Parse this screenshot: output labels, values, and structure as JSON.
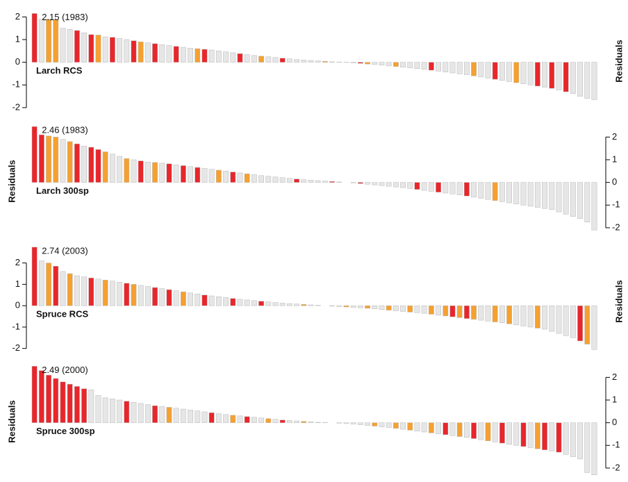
{
  "chart_data": [
    {
      "type": "bar",
      "label": "Larch RCS",
      "annotation": "2.15 (1983)",
      "ylabel": "Residuals",
      "y_axis_side": "left",
      "ylim": [
        -2.4,
        2.5
      ],
      "yticks": [
        -2,
        -1,
        0,
        1,
        2
      ],
      "values": [
        2.15,
        1.9,
        1.9,
        1.88,
        1.5,
        1.45,
        1.4,
        1.3,
        1.22,
        1.2,
        1.12,
        1.1,
        1.05,
        1.0,
        0.95,
        0.9,
        0.86,
        0.82,
        0.78,
        0.74,
        0.7,
        0.66,
        0.62,
        0.6,
        0.57,
        0.54,
        0.5,
        0.46,
        0.42,
        0.38,
        0.34,
        0.3,
        0.27,
        0.24,
        0.21,
        0.18,
        0.15,
        0.12,
        0.1,
        0.08,
        0.06,
        0.04,
        0.02,
        0.01,
        -0.01,
        -0.03,
        -0.05,
        -0.08,
        -0.1,
        -0.13,
        -0.16,
        -0.19,
        -0.22,
        -0.25,
        -0.28,
        -0.31,
        -0.35,
        -0.39,
        -0.43,
        -0.47,
        -0.51,
        -0.55,
        -0.6,
        -0.65,
        -0.7,
        -0.75,
        -0.8,
        -0.85,
        -0.9,
        -0.95,
        -1.0,
        -1.05,
        -1.1,
        -1.15,
        -1.22,
        -1.3,
        -1.38,
        -1.5,
        -1.6,
        -1.65
      ],
      "bar_colors": [
        "#e8262b",
        "#e6e6e6",
        "#f5a030",
        "#f5a030",
        "#e6e6e6",
        "#e6e6e6",
        "#e8262b",
        "#e6e6e6",
        "#e8262b",
        "#f5a030",
        "#e6e6e6",
        "#e8262b",
        "#e6e6e6",
        "#e6e6e6",
        "#e8262b",
        "#f5a030",
        "#e6e6e6",
        "#e8262b",
        "#e6e6e6",
        "#e6e6e6",
        "#e8262b",
        "#e6e6e6",
        "#e6e6e6",
        "#f5a030",
        "#e8262b",
        "#e6e6e6",
        "#e6e6e6",
        "#e6e6e6",
        "#e6e6e6",
        "#e8262b",
        "#e6e6e6",
        "#e6e6e6",
        "#f5a030",
        "#e6e6e6",
        "#e6e6e6",
        "#e8262b",
        "#e6e6e6",
        "#e6e6e6",
        "#e6e6e6",
        "#e6e6e6",
        "#e6e6e6",
        "#f5a030",
        "#e6e6e6",
        "#e6e6e6",
        "#e6e6e6",
        "#e6e6e6",
        "#e8262b",
        "#f5a030",
        "#e6e6e6",
        "#e6e6e6",
        "#e6e6e6",
        "#f5a030",
        "#e6e6e6",
        "#e6e6e6",
        "#e6e6e6",
        "#e6e6e6",
        "#e8262b",
        "#e6e6e6",
        "#e6e6e6",
        "#e6e6e6",
        "#e6e6e6",
        "#e6e6e6",
        "#f5a030",
        "#e6e6e6",
        "#e6e6e6",
        "#e8262b",
        "#e6e6e6",
        "#e6e6e6",
        "#f5a030",
        "#e6e6e6",
        "#e6e6e6",
        "#e8262b",
        "#e6e6e6",
        "#e8262b",
        "#e6e6e6",
        "#e8262b",
        "#e6e6e6",
        "#e6e6e6",
        "#e6e6e6",
        "#e6e6e6"
      ]
    },
    {
      "type": "bar",
      "label": "Larch 300sp",
      "annotation": "2.46 (1983)",
      "ylabel": "Residuals",
      "y_axis_side": "right",
      "ylim": [
        -2.4,
        2.5
      ],
      "yticks": [
        -2,
        -1,
        0,
        1,
        2
      ],
      "values": [
        2.46,
        2.1,
        2.05,
        2.0,
        1.9,
        1.8,
        1.7,
        1.6,
        1.55,
        1.45,
        1.35,
        1.25,
        1.15,
        1.05,
        1.0,
        0.95,
        0.9,
        0.88,
        0.85,
        0.82,
        0.78,
        0.74,
        0.7,
        0.66,
        0.62,
        0.58,
        0.54,
        0.5,
        0.46,
        0.42,
        0.38,
        0.34,
        0.3,
        0.27,
        0.24,
        0.21,
        0.18,
        0.15,
        0.12,
        0.1,
        0.08,
        0.06,
        0.04,
        0.02,
        0.0,
        -0.02,
        -0.05,
        -0.08,
        -0.11,
        -0.14,
        -0.17,
        -0.2,
        -0.23,
        -0.27,
        -0.31,
        -0.35,
        -0.39,
        -0.43,
        -0.47,
        -0.51,
        -0.55,
        -0.6,
        -0.65,
        -0.7,
        -0.75,
        -0.8,
        -0.85,
        -0.9,
        -0.95,
        -1.0,
        -1.05,
        -1.1,
        -1.15,
        -1.2,
        -1.3,
        -1.4,
        -1.5,
        -1.6,
        -1.75,
        -2.1
      ],
      "bar_colors": [
        "#e8262b",
        "#e8262b",
        "#f5a030",
        "#f5a030",
        "#e6e6e6",
        "#f5a030",
        "#e8262b",
        "#e6e6e6",
        "#e8262b",
        "#e8262b",
        "#f5a030",
        "#e6e6e6",
        "#e6e6e6",
        "#f5a030",
        "#e6e6e6",
        "#e8262b",
        "#e6e6e6",
        "#f5a030",
        "#e6e6e6",
        "#e8262b",
        "#e6e6e6",
        "#e8262b",
        "#e6e6e6",
        "#e8262b",
        "#e6e6e6",
        "#e6e6e6",
        "#f5a030",
        "#e6e6e6",
        "#e8262b",
        "#e6e6e6",
        "#f5a030",
        "#e6e6e6",
        "#e6e6e6",
        "#e6e6e6",
        "#e6e6e6",
        "#e6e6e6",
        "#e6e6e6",
        "#e8262b",
        "#e6e6e6",
        "#e6e6e6",
        "#e6e6e6",
        "#e6e6e6",
        "#e8262b",
        "#e6e6e6",
        "#e6e6e6",
        "#e6e6e6",
        "#e8262b",
        "#e6e6e6",
        "#e6e6e6",
        "#e6e6e6",
        "#e6e6e6",
        "#e6e6e6",
        "#e6e6e6",
        "#e6e6e6",
        "#e8262b",
        "#e6e6e6",
        "#e6e6e6",
        "#e8262b",
        "#e6e6e6",
        "#e6e6e6",
        "#e6e6e6",
        "#e8262b",
        "#e6e6e6",
        "#e6e6e6",
        "#e6e6e6",
        "#f5a030",
        "#e6e6e6",
        "#e6e6e6",
        "#e6e6e6",
        "#e6e6e6",
        "#e6e6e6",
        "#e6e6e6",
        "#e6e6e6",
        "#e6e6e6",
        "#e6e6e6",
        "#e6e6e6",
        "#e6e6e6",
        "#e6e6e6",
        "#e6e6e6",
        "#e6e6e6"
      ]
    },
    {
      "type": "bar",
      "label": "Spruce RCS",
      "annotation": "2.74 (2003)",
      "ylabel": "Residuals",
      "y_axis_side": "left",
      "ylim": [
        -2.4,
        2.8
      ],
      "yticks": [
        -2,
        -1,
        0,
        1,
        2
      ],
      "values": [
        2.74,
        2.1,
        2.0,
        1.85,
        1.6,
        1.5,
        1.4,
        1.35,
        1.3,
        1.25,
        1.2,
        1.15,
        1.1,
        1.05,
        1.0,
        0.95,
        0.9,
        0.85,
        0.8,
        0.75,
        0.7,
        0.65,
        0.6,
        0.55,
        0.5,
        0.46,
        0.42,
        0.38,
        0.34,
        0.3,
        0.27,
        0.24,
        0.21,
        0.18,
        0.15,
        0.12,
        0.1,
        0.08,
        0.06,
        0.04,
        0.02,
        0.0,
        -0.02,
        -0.04,
        -0.06,
        -0.08,
        -0.1,
        -0.12,
        -0.15,
        -0.18,
        -0.21,
        -0.24,
        -0.27,
        -0.3,
        -0.33,
        -0.36,
        -0.4,
        -0.44,
        -0.48,
        -0.52,
        -0.56,
        -0.6,
        -0.64,
        -0.68,
        -0.72,
        -0.76,
        -0.8,
        -0.85,
        -0.9,
        -0.95,
        -1.0,
        -1.05,
        -1.1,
        -1.2,
        -1.3,
        -1.4,
        -1.5,
        -1.65,
        -1.8,
        -2.05
      ],
      "bar_colors": [
        "#e8262b",
        "#e6e6e6",
        "#f5a030",
        "#e8262b",
        "#e6e6e6",
        "#f5a030",
        "#e6e6e6",
        "#e6e6e6",
        "#e8262b",
        "#e6e6e6",
        "#f5a030",
        "#e6e6e6",
        "#e6e6e6",
        "#e8262b",
        "#f5a030",
        "#e6e6e6",
        "#e6e6e6",
        "#e8262b",
        "#e6e6e6",
        "#e8262b",
        "#e6e6e6",
        "#f5a030",
        "#e6e6e6",
        "#e6e6e6",
        "#e8262b",
        "#e6e6e6",
        "#e6e6e6",
        "#e6e6e6",
        "#e8262b",
        "#e6e6e6",
        "#e6e6e6",
        "#e6e6e6",
        "#e8262b",
        "#e6e6e6",
        "#e6e6e6",
        "#e6e6e6",
        "#e6e6e6",
        "#e6e6e6",
        "#f5a030",
        "#e6e6e6",
        "#e6e6e6",
        "#e6e6e6",
        "#e6e6e6",
        "#e6e6e6",
        "#f5a030",
        "#e6e6e6",
        "#e6e6e6",
        "#f5a030",
        "#e6e6e6",
        "#e6e6e6",
        "#f5a030",
        "#e6e6e6",
        "#e6e6e6",
        "#f5a030",
        "#e6e6e6",
        "#e6e6e6",
        "#f5a030",
        "#e6e6e6",
        "#f5a030",
        "#e8262b",
        "#f5a030",
        "#e8262b",
        "#f5a030",
        "#e6e6e6",
        "#e6e6e6",
        "#f5a030",
        "#e6e6e6",
        "#f5a030",
        "#e6e6e6",
        "#e6e6e6",
        "#e6e6e6",
        "#f5a030",
        "#e6e6e6",
        "#e6e6e6",
        "#e6e6e6",
        "#e6e6e6",
        "#e6e6e6",
        "#e8262b",
        "#f5a030",
        "#e6e6e6"
      ]
    },
    {
      "type": "bar",
      "label": "Spruce 300sp",
      "annotation": "2.49 (2000)",
      "ylabel": "Residuals",
      "y_axis_side": "right",
      "ylim": [
        -2.4,
        2.5
      ],
      "yticks": [
        -2,
        -1,
        0,
        1,
        2
      ],
      "values": [
        2.49,
        2.3,
        2.1,
        1.95,
        1.8,
        1.7,
        1.6,
        1.5,
        1.45,
        1.2,
        1.1,
        1.05,
        1.0,
        0.95,
        0.9,
        0.85,
        0.8,
        0.75,
        0.72,
        0.68,
        0.64,
        0.6,
        0.56,
        0.52,
        0.48,
        0.44,
        0.4,
        0.36,
        0.33,
        0.3,
        0.27,
        0.24,
        0.21,
        0.18,
        0.15,
        0.12,
        0.1,
        0.08,
        0.06,
        0.04,
        0.02,
        0.01,
        0.0,
        -0.02,
        -0.04,
        -0.06,
        -0.09,
        -0.12,
        -0.15,
        -0.18,
        -0.21,
        -0.25,
        -0.29,
        -0.33,
        -0.37,
        -0.41,
        -0.45,
        -0.49,
        -0.53,
        -0.57,
        -0.61,
        -0.65,
        -0.7,
        -0.75,
        -0.8,
        -0.85,
        -0.9,
        -0.95,
        -1.0,
        -1.05,
        -1.1,
        -1.15,
        -1.2,
        -1.25,
        -1.3,
        -1.4,
        -1.5,
        -1.6,
        -2.2,
        -2.3
      ],
      "bar_colors": [
        "#e8262b",
        "#e8262b",
        "#e8262b",
        "#e8262b",
        "#e8262b",
        "#e8262b",
        "#e8262b",
        "#e8262b",
        "#e6e6e6",
        "#e6e6e6",
        "#e6e6e6",
        "#e6e6e6",
        "#e6e6e6",
        "#e8262b",
        "#e6e6e6",
        "#e6e6e6",
        "#e6e6e6",
        "#e8262b",
        "#e6e6e6",
        "#f5a030",
        "#e6e6e6",
        "#e6e6e6",
        "#e6e6e6",
        "#e6e6e6",
        "#e6e6e6",
        "#e8262b",
        "#e6e6e6",
        "#e6e6e6",
        "#f5a030",
        "#e6e6e6",
        "#e8262b",
        "#e6e6e6",
        "#e6e6e6",
        "#f5a030",
        "#e6e6e6",
        "#e8262b",
        "#e6e6e6",
        "#e6e6e6",
        "#f5a030",
        "#e6e6e6",
        "#e6e6e6",
        "#e6e6e6",
        "#e6e6e6",
        "#e6e6e6",
        "#e6e6e6",
        "#e6e6e6",
        "#e6e6e6",
        "#e6e6e6",
        "#f5a030",
        "#e6e6e6",
        "#e6e6e6",
        "#f5a030",
        "#e6e6e6",
        "#f5a030",
        "#e6e6e6",
        "#e6e6e6",
        "#f5a030",
        "#e6e6e6",
        "#e8262b",
        "#e6e6e6",
        "#f5a030",
        "#e6e6e6",
        "#e8262b",
        "#e6e6e6",
        "#f5a030",
        "#e6e6e6",
        "#e8262b",
        "#e6e6e6",
        "#e6e6e6",
        "#e8262b",
        "#e6e6e6",
        "#f5a030",
        "#e8262b",
        "#e6e6e6",
        "#e8262b",
        "#e6e6e6",
        "#e6e6e6",
        "#e6e6e6",
        "#e6e6e6",
        "#e6e6e6"
      ]
    }
  ]
}
